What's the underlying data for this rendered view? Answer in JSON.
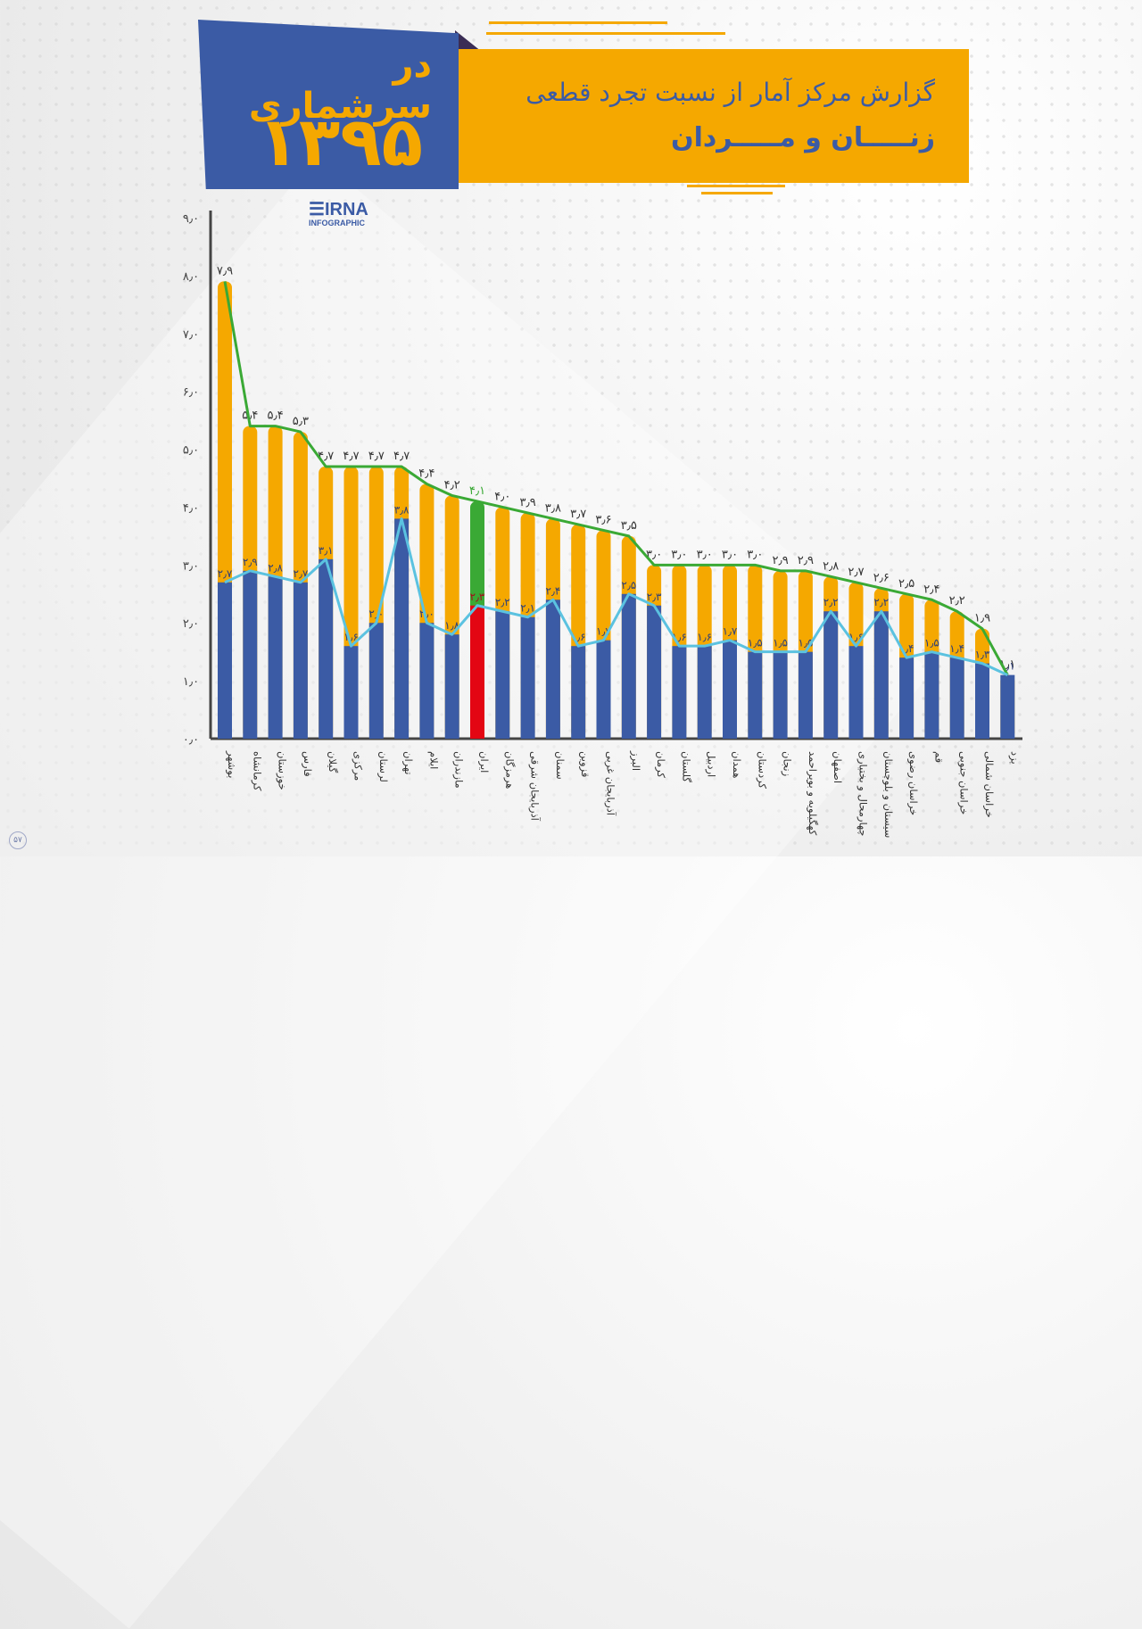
{
  "header": {
    "badge_line1": "در سرشماری",
    "badge_year": "۱۳۹۵",
    "title_line1": "گزارش مرکز آمار از نسبت تجرد قطعی",
    "title_line2": "زنـــــان و مـــــردان"
  },
  "logo": {
    "name": "IRNA",
    "sub": "INFOGRAPHIC"
  },
  "page_number": "۵۷",
  "colors": {
    "men_bar": "#f5a800",
    "women_bar": "#3b5ba5",
    "men_line": "#3aa935",
    "women_line": "#5bc2e0",
    "iran_men": "#3aa935",
    "iran_women": "#e30613"
  },
  "chart_data": {
    "type": "bar",
    "title": "گزارش مرکز آمار از نسبت تجرد قطعی زنان و مردان در سرشماری ۱۳۹۵",
    "xlabel": "",
    "ylabel": "",
    "ylim": [
      0,
      9
    ],
    "yticks": [
      "۰٫۰",
      "۱٫۰",
      "۲٫۰",
      "۳٫۰",
      "۴٫۰",
      "۵٫۰",
      "۶٫۰",
      "۷٫۰",
      "۸٫۰",
      "۹٫۰"
    ],
    "grid": false,
    "categories": [
      "بوشهر",
      "کرمانشاه",
      "خوزستان",
      "فارس",
      "گیلان",
      "مرکزی",
      "لرستان",
      "تهران",
      "ایلام",
      "مازندران",
      "ایران",
      "هرمزگان",
      "آذربایجان شرقی",
      "سمنان",
      "قزوین",
      "آذربایجان غربی",
      "البرز",
      "کرمان",
      "گلستان",
      "اردبیل",
      "همدان",
      "کردستان",
      "زنجان",
      "کهگیلویه و بویراحمد",
      "اصفهان",
      "چهارمحال و بختیاری",
      "سیستان و بلوچستان",
      "خراسان رضوی",
      "قم",
      "خراسان جنوبی",
      "خراسان شمالی",
      "یزد"
    ],
    "series": [
      {
        "name": "مردان",
        "values": [
          7.9,
          5.4,
          5.4,
          5.3,
          4.7,
          4.7,
          4.7,
          4.7,
          4.4,
          4.2,
          4.1,
          4.0,
          3.9,
          3.8,
          3.7,
          3.6,
          3.5,
          3.0,
          3.0,
          3.0,
          3.0,
          3.0,
          2.9,
          2.9,
          2.8,
          2.7,
          2.6,
          2.5,
          2.4,
          2.2,
          1.9,
          1.1
        ],
        "labels": [
          "۷٫۹",
          "۵٫۴",
          "۵٫۴",
          "۵٫۳",
          "۴٫۷",
          "۴٫۷",
          "۴٫۷",
          "۴٫۷",
          "۴٫۴",
          "۴٫۲",
          "۴٫۱",
          "۴٫۰",
          "۳٫۹",
          "۳٫۸",
          "۳٫۷",
          "۳٫۶",
          "۳٫۵",
          "۳٫۰",
          "۳٫۰",
          "۳٫۰",
          "۳٫۰",
          "۳٫۰",
          "۲٫۹",
          "۲٫۹",
          "۲٫۸",
          "۲٫۷",
          "۲٫۶",
          "۲٫۵",
          "۲٫۴",
          "۲٫۲",
          "۱٫۹",
          "۱٫۱"
        ]
      },
      {
        "name": "زنان",
        "values": [
          2.7,
          2.9,
          2.8,
          2.7,
          3.1,
          1.6,
          2.0,
          3.8,
          2.0,
          1.8,
          2.3,
          2.2,
          2.1,
          2.4,
          1.6,
          1.7,
          2.5,
          2.3,
          1.6,
          1.6,
          1.7,
          1.5,
          1.5,
          1.5,
          2.2,
          1.6,
          2.2,
          1.4,
          1.5,
          1.4,
          1.3,
          1.1
        ],
        "labels": [
          "۲٫۷",
          "۲٫۹",
          "۲٫۸",
          "۲٫۷",
          "۳٫۱",
          "۱٫۶",
          "۲٫۰",
          "۳٫۸",
          "۲٫۰",
          "۱٫۸",
          "۲٫۳",
          "۲٫۲",
          "۲٫۱",
          "۲٫۴",
          "۱٫۶",
          "۱٫۷",
          "۲٫۵",
          "۲٫۳",
          "۱٫۶",
          "۱٫۶",
          "۱٫۷",
          "۱٫۵",
          "۱٫۵",
          "۱٫۵",
          "۲٫۲",
          "۱٫۶",
          "۲٫۲",
          "۱٫۴",
          "۱٫۵",
          "۱٫۴",
          "۱٫۳",
          "۱٫۱"
        ]
      }
    ],
    "highlight_category": "ایران"
  }
}
